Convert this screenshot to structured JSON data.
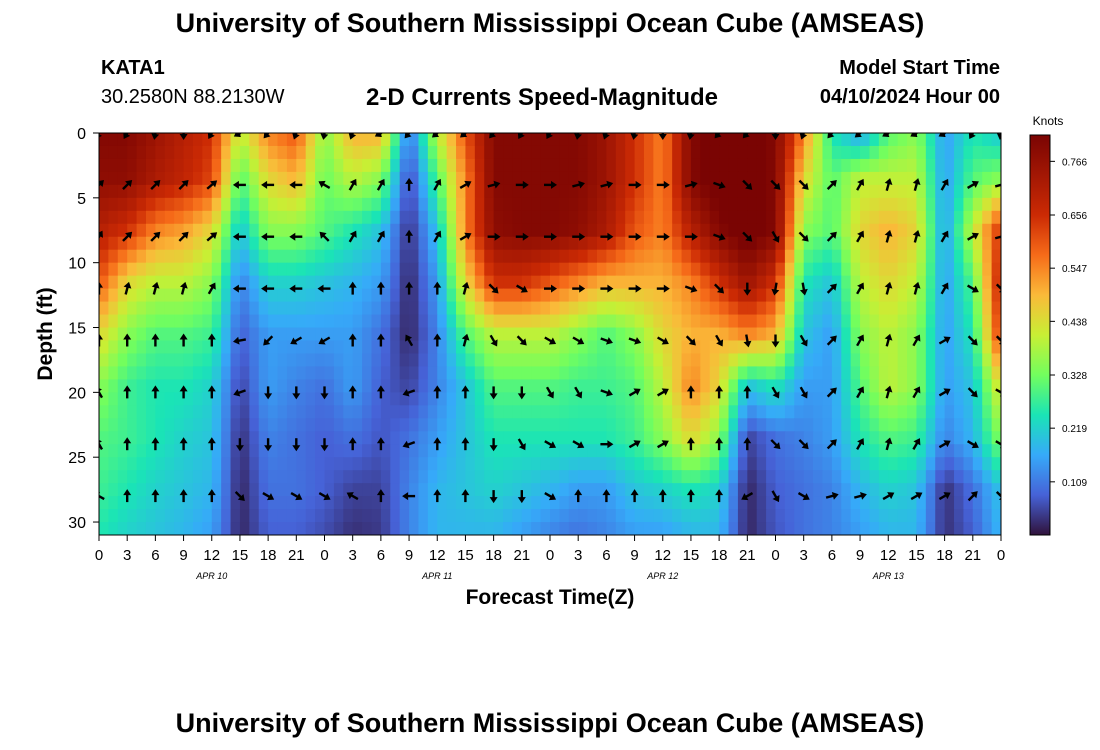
{
  "header": {
    "title_top": "University of Southern Mississippi Ocean Cube (AMSEAS)",
    "title_bottom": "University of Southern Mississippi Ocean Cube (AMSEAS)",
    "station": "KATA1",
    "coords": "30.2580N  88.2130W",
    "product": "2-D Currents Speed-Magnitude",
    "model_label": "Model Start Time",
    "model_time": "04/10/2024 Hour 00"
  },
  "chart_data": {
    "type": "heatmap",
    "title": "2-D Currents Speed-Magnitude",
    "xlabel": "Forecast Time(Z)",
    "ylabel": "Depth (ft)",
    "x_tick_labels": [
      "0",
      "3",
      "6",
      "9",
      "12",
      "15",
      "18",
      "21",
      "0",
      "3",
      "6",
      "9",
      "12",
      "15",
      "18",
      "21",
      "0",
      "3",
      "6",
      "9",
      "12",
      "15",
      "18",
      "21",
      "0",
      "3",
      "6",
      "9",
      "12",
      "15",
      "18",
      "21",
      "0"
    ],
    "x_range_hours": [
      0,
      96
    ],
    "day_labels": [
      "APR 10",
      "APR 11",
      "APR 12",
      "APR 13"
    ],
    "y_ticks": [
      0,
      5,
      10,
      15,
      20,
      25,
      30
    ],
    "y_range": [
      0,
      31
    ],
    "colorbar": {
      "unit": "Knots",
      "ticks": [
        0.109,
        0.219,
        0.328,
        0.438,
        0.547,
        0.656,
        0.766
      ],
      "range": [
        0.0,
        0.82
      ]
    },
    "depths_ft": [
      0,
      3.5,
      7.5,
      11.5,
      15.5,
      19.5,
      23.5,
      27.5,
      31
    ],
    "times_h": [
      0,
      3,
      6,
      9,
      12,
      15,
      18,
      21,
      24,
      27,
      30,
      33,
      36,
      39,
      42,
      45,
      48,
      51,
      54,
      57,
      60,
      63,
      66,
      69,
      72,
      75,
      78,
      81,
      84,
      87,
      90,
      93,
      96
    ],
    "speed_knots": [
      [
        0.8,
        0.8,
        0.75,
        0.7,
        0.65,
        0.4,
        0.55,
        0.6,
        0.35,
        0.5,
        0.5,
        0.1,
        0.4,
        0.6,
        0.8,
        0.8,
        0.8,
        0.8,
        0.75,
        0.65,
        0.55,
        0.8,
        0.85,
        0.85,
        0.8,
        0.55,
        0.25,
        0.15,
        0.3,
        0.35,
        0.15,
        0.25,
        0.2
      ],
      [
        0.78,
        0.78,
        0.72,
        0.68,
        0.62,
        0.3,
        0.45,
        0.5,
        0.32,
        0.4,
        0.35,
        0.05,
        0.3,
        0.55,
        0.8,
        0.8,
        0.8,
        0.8,
        0.75,
        0.65,
        0.55,
        0.8,
        0.85,
        0.85,
        0.8,
        0.45,
        0.3,
        0.4,
        0.4,
        0.4,
        0.15,
        0.3,
        0.35
      ],
      [
        0.7,
        0.65,
        0.55,
        0.52,
        0.45,
        0.2,
        0.35,
        0.35,
        0.3,
        0.25,
        0.2,
        0.03,
        0.2,
        0.55,
        0.78,
        0.8,
        0.8,
        0.78,
        0.72,
        0.6,
        0.55,
        0.7,
        0.8,
        0.85,
        0.8,
        0.35,
        0.3,
        0.45,
        0.5,
        0.45,
        0.15,
        0.4,
        0.65
      ],
      [
        0.6,
        0.45,
        0.4,
        0.4,
        0.35,
        0.12,
        0.22,
        0.22,
        0.2,
        0.18,
        0.15,
        0.02,
        0.15,
        0.45,
        0.65,
        0.65,
        0.6,
        0.55,
        0.5,
        0.5,
        0.5,
        0.55,
        0.65,
        0.75,
        0.65,
        0.25,
        0.2,
        0.4,
        0.45,
        0.4,
        0.15,
        0.3,
        0.7
      ],
      [
        0.45,
        0.35,
        0.3,
        0.3,
        0.28,
        0.08,
        0.15,
        0.15,
        0.15,
        0.15,
        0.1,
        0.02,
        0.12,
        0.3,
        0.4,
        0.4,
        0.4,
        0.35,
        0.3,
        0.35,
        0.45,
        0.5,
        0.5,
        0.55,
        0.5,
        0.2,
        0.15,
        0.35,
        0.4,
        0.35,
        0.15,
        0.25,
        0.65
      ],
      [
        0.35,
        0.28,
        0.25,
        0.25,
        0.22,
        0.05,
        0.15,
        0.12,
        0.1,
        0.15,
        0.08,
        0.05,
        0.12,
        0.2,
        0.3,
        0.3,
        0.3,
        0.28,
        0.28,
        0.3,
        0.4,
        0.55,
        0.45,
        0.2,
        0.25,
        0.15,
        0.15,
        0.3,
        0.4,
        0.35,
        0.15,
        0.2,
        0.45
      ],
      [
        0.3,
        0.28,
        0.25,
        0.22,
        0.2,
        0.03,
        0.12,
        0.1,
        0.08,
        0.1,
        0.07,
        0.1,
        0.15,
        0.2,
        0.25,
        0.25,
        0.25,
        0.25,
        0.25,
        0.28,
        0.35,
        0.45,
        0.35,
        0.05,
        0.1,
        0.12,
        0.15,
        0.25,
        0.3,
        0.28,
        0.12,
        0.18,
        0.35
      ],
      [
        0.28,
        0.25,
        0.22,
        0.2,
        0.18,
        0.02,
        0.1,
        0.1,
        0.08,
        0.05,
        0.05,
        0.12,
        0.18,
        0.2,
        0.22,
        0.2,
        0.18,
        0.15,
        0.15,
        0.2,
        0.22,
        0.25,
        0.22,
        0.02,
        0.08,
        0.1,
        0.12,
        0.18,
        0.22,
        0.2,
        0.03,
        0.1,
        0.2
      ],
      [
        0.25,
        0.22,
        0.2,
        0.18,
        0.15,
        0.02,
        0.08,
        0.08,
        0.06,
        0.03,
        0.04,
        0.12,
        0.18,
        0.18,
        0.18,
        0.15,
        0.12,
        0.1,
        0.12,
        0.15,
        0.15,
        0.18,
        0.18,
        0.02,
        0.07,
        0.1,
        0.12,
        0.15,
        0.18,
        0.18,
        0.03,
        0.08,
        0.18
      ]
    ],
    "arrow_depths_ft": [
      0,
      4,
      8,
      12,
      16,
      20,
      24,
      28
    ],
    "arrow_times_h": [
      0,
      3,
      6,
      9,
      12,
      15,
      18,
      21,
      24,
      27,
      30,
      33,
      36,
      39,
      42,
      45,
      48,
      51,
      54,
      57,
      60,
      63,
      66,
      69,
      72,
      75,
      78,
      81,
      84,
      87,
      90,
      93,
      96
    ],
    "arrow_angles_deg": [
      [
        120,
        120,
        100,
        90,
        120,
        150,
        130,
        110,
        100,
        110,
        150,
        130,
        140,
        140,
        130,
        120,
        120,
        100,
        110,
        100,
        90,
        100,
        130,
        130,
        90,
        110,
        130,
        140,
        150,
        150,
        150,
        120,
        100
      ],
      [
        -45,
        -45,
        -45,
        -45,
        -40,
        180,
        180,
        180,
        -150,
        -60,
        -60,
        -90,
        -60,
        -30,
        -15,
        0,
        0,
        -15,
        -15,
        0,
        0,
        -15,
        20,
        45,
        45,
        45,
        -45,
        -60,
        -75,
        -75,
        -60,
        -30,
        -15
      ],
      [
        -60,
        -45,
        -45,
        -45,
        -40,
        180,
        180,
        180,
        -135,
        -60,
        -60,
        -90,
        -60,
        -30,
        0,
        0,
        0,
        0,
        0,
        0,
        0,
        0,
        20,
        45,
        60,
        45,
        -45,
        -60,
        -75,
        -75,
        -60,
        -30,
        -15
      ],
      [
        -90,
        -75,
        -75,
        -75,
        -60,
        180,
        180,
        180,
        180,
        -90,
        -90,
        -90,
        -90,
        -75,
        45,
        30,
        0,
        0,
        0,
        0,
        0,
        20,
        45,
        90,
        100,
        80,
        -45,
        -60,
        -75,
        -75,
        -60,
        30,
        45
      ],
      [
        -90,
        -90,
        -90,
        -90,
        -90,
        170,
        135,
        150,
        150,
        -90,
        -90,
        -120,
        -90,
        -75,
        60,
        45,
        30,
        30,
        20,
        20,
        30,
        45,
        60,
        80,
        90,
        60,
        -45,
        -60,
        -75,
        -60,
        -30,
        45,
        45
      ],
      [
        -120,
        -90,
        -90,
        -90,
        -90,
        160,
        90,
        90,
        90,
        -90,
        -90,
        160,
        -90,
        -90,
        90,
        90,
        60,
        60,
        20,
        -30,
        -30,
        -90,
        -90,
        -90,
        60,
        60,
        -45,
        -60,
        -75,
        -60,
        -30,
        45,
        30
      ],
      [
        -120,
        -90,
        -90,
        -90,
        -90,
        90,
        90,
        90,
        90,
        -90,
        -90,
        160,
        -90,
        -90,
        90,
        60,
        30,
        30,
        0,
        -30,
        -30,
        -90,
        -90,
        -90,
        45,
        45,
        -45,
        -60,
        -75,
        -60,
        -30,
        30,
        30
      ],
      [
        -150,
        -90,
        -90,
        -90,
        -90,
        45,
        30,
        30,
        30,
        -150,
        -90,
        180,
        -90,
        -90,
        90,
        90,
        30,
        -90,
        -90,
        -90,
        -90,
        -90,
        -90,
        150,
        60,
        30,
        -15,
        -15,
        -30,
        -30,
        -30,
        -45,
        45
      ]
    ]
  }
}
